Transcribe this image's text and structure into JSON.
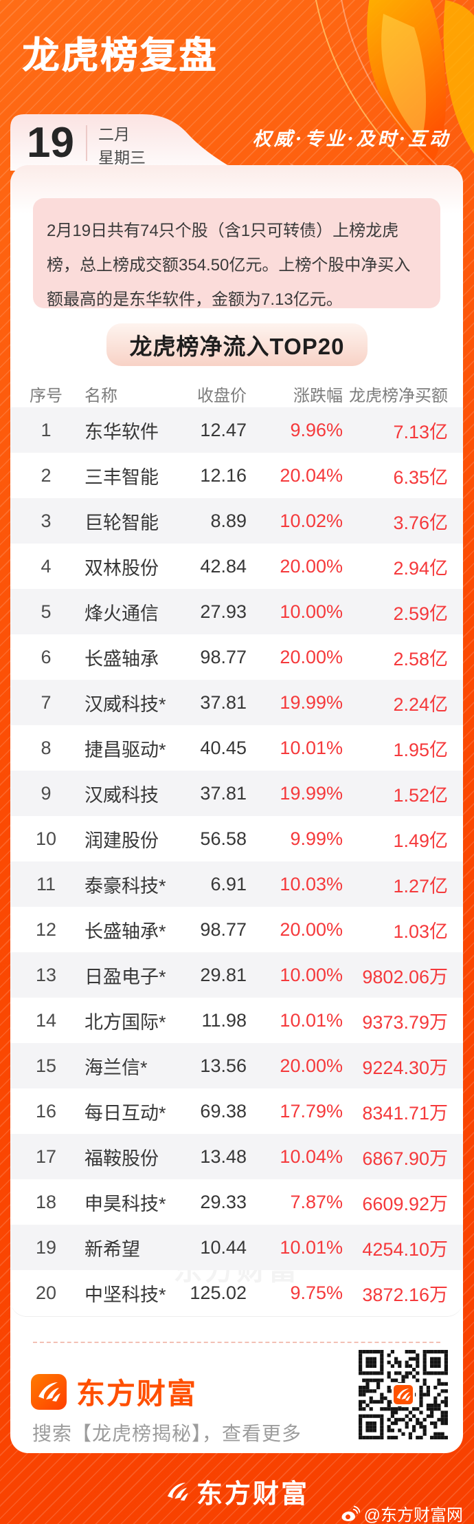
{
  "header": {
    "title": "龙虎榜复盘",
    "tagline": "权威·专业·及时·互动"
  },
  "date_tab": {
    "day": "19",
    "month": "二月",
    "weekday": "星期三"
  },
  "summary_text": "2月19日共有74只个股（含1只可转债）上榜龙虎榜，总上榜成交额354.50亿元。上榜个股中净买入额最高的是东华软件，金额为7.13亿元。",
  "table": {
    "title": "龙虎榜净流入TOP20",
    "columns": [
      "序号",
      "名称",
      "收盘价",
      "涨跌幅",
      "龙虎榜净买额"
    ],
    "rows": [
      [
        "1",
        "东华软件",
        "12.47",
        "9.96%",
        "7.13亿"
      ],
      [
        "2",
        "三丰智能",
        "12.16",
        "20.04%",
        "6.35亿"
      ],
      [
        "3",
        "巨轮智能",
        "8.89",
        "10.02%",
        "3.76亿"
      ],
      [
        "4",
        "双林股份",
        "42.84",
        "20.00%",
        "2.94亿"
      ],
      [
        "5",
        "烽火通信",
        "27.93",
        "10.00%",
        "2.59亿"
      ],
      [
        "6",
        "长盛轴承",
        "98.77",
        "20.00%",
        "2.58亿"
      ],
      [
        "7",
        "汉威科技*",
        "37.81",
        "19.99%",
        "2.24亿"
      ],
      [
        "8",
        "捷昌驱动*",
        "40.45",
        "10.01%",
        "1.95亿"
      ],
      [
        "9",
        "汉威科技",
        "37.81",
        "19.99%",
        "1.52亿"
      ],
      [
        "10",
        "润建股份",
        "56.58",
        "9.99%",
        "1.49亿"
      ],
      [
        "11",
        "泰豪科技*",
        "6.91",
        "10.03%",
        "1.27亿"
      ],
      [
        "12",
        "长盛轴承*",
        "98.77",
        "20.00%",
        "1.03亿"
      ],
      [
        "13",
        "日盈电子*",
        "29.81",
        "10.00%",
        "9802.06万"
      ],
      [
        "14",
        "北方国际*",
        "11.98",
        "10.01%",
        "9373.79万"
      ],
      [
        "15",
        "海兰信*",
        "13.56",
        "20.00%",
        "9224.30万"
      ],
      [
        "16",
        "每日互动*",
        "69.38",
        "17.79%",
        "8341.71万"
      ],
      [
        "17",
        "福鞍股份",
        "13.48",
        "10.04%",
        "6867.90万"
      ],
      [
        "18",
        "申昊科技*",
        "29.33",
        "7.87%",
        "6609.92万"
      ],
      [
        "19",
        "新希望",
        "10.44",
        "10.01%",
        "4254.10万"
      ],
      [
        "20",
        "中坚科技*",
        "125.02",
        "9.75%",
        "3872.16万"
      ]
    ]
  },
  "watermark_text": "东方财富",
  "footer": {
    "brand": "东方财富",
    "search_hint": "搜索【龙虎榜揭秘】，查看更多"
  },
  "bottom_bar": {
    "brand": "东方财富",
    "weibo_handle": "@东方财富网"
  },
  "colors": {
    "background_orange": "#fb4a03",
    "brand_orange": "#ff4f00",
    "value_red": "#f5393b",
    "summary_pink": "#fbdcda",
    "zebra_gray": "#f4f4f6",
    "pill_peach": "#f8d2c6"
  }
}
